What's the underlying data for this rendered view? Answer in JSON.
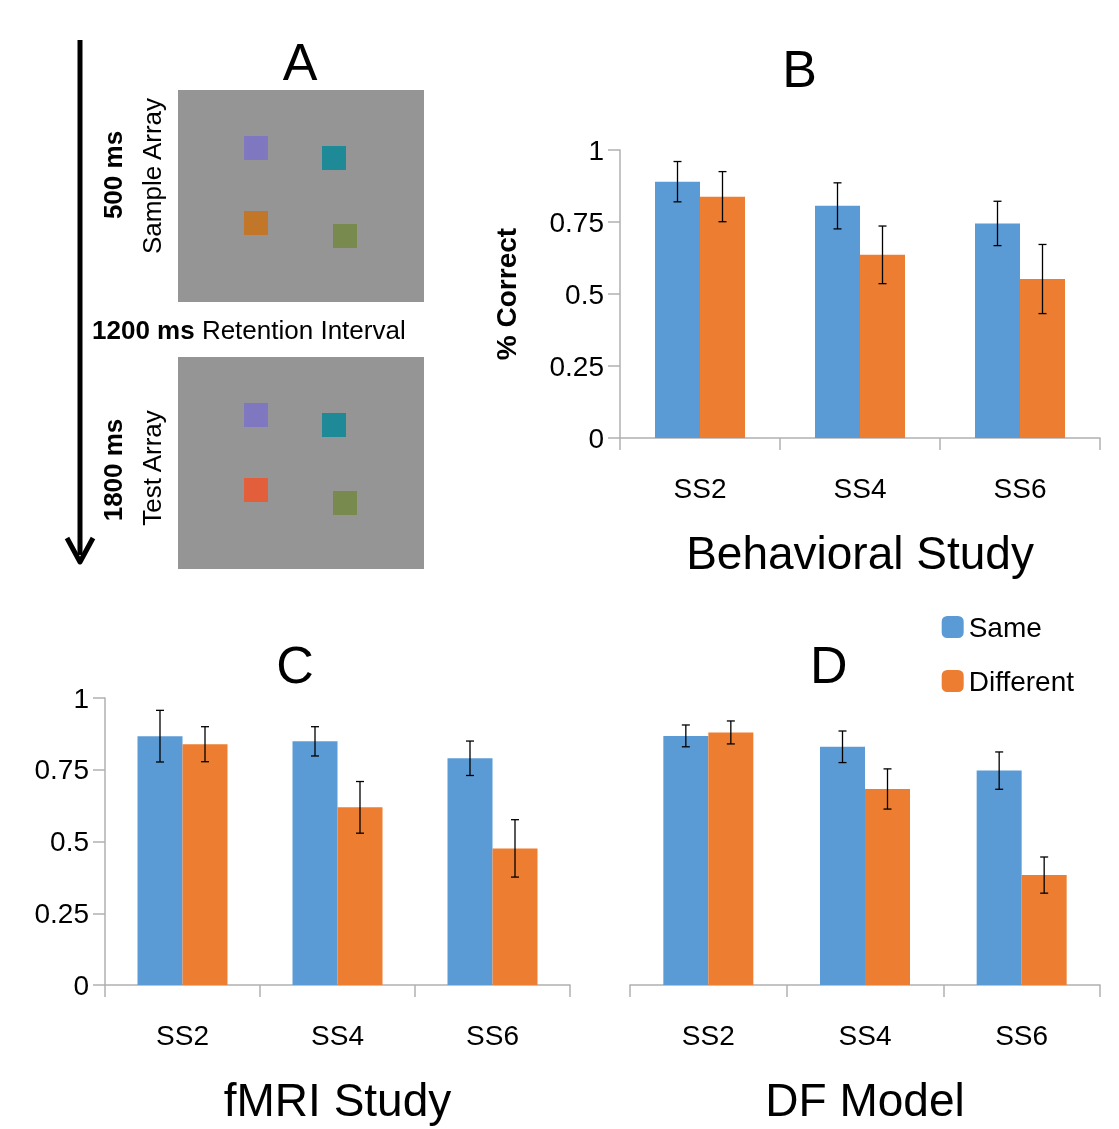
{
  "chart_data": [
    {
      "type": "other",
      "title": "A",
      "annotations": [
        "500 ms",
        "Sample Array",
        "1200 ms",
        "Retention Interval",
        "1800 ms",
        "Test Array"
      ]
    },
    {
      "type": "bar",
      "title": "B",
      "xlabel": "Behavioral Study",
      "ylabel": "% Correct",
      "categories": [
        "SS2",
        "SS4",
        "SS6"
      ],
      "ylim": [
        0,
        1
      ],
      "yticks": [
        0,
        0.25,
        0.5,
        0.75,
        1
      ],
      "series": [
        {
          "color": "#5b9bd5",
          "values": [
            0.89,
            0.806,
            0.745
          ],
          "errors": [
            0.07,
            0.08,
            0.077
          ]
        },
        {
          "color": "#ed7d31",
          "values": [
            0.838,
            0.636,
            0.552
          ],
          "errors": [
            0.087,
            0.1,
            0.12
          ]
        }
      ]
    },
    {
      "type": "bar",
      "title": "C",
      "xlabel": "fMRI Study",
      "categories": [
        "SS2",
        "SS4",
        "SS6"
      ],
      "ylim": [
        0,
        1
      ],
      "yticks": [
        0,
        0.25,
        0.5,
        0.75,
        1
      ],
      "series": [
        {
          "color": "#5b9bd5",
          "values": [
            0.867,
            0.849,
            0.79
          ],
          "errors": [
            0.09,
            0.051,
            0.06
          ]
        },
        {
          "color": "#ed7d31",
          "values": [
            0.839,
            0.619,
            0.476
          ],
          "errors": [
            0.061,
            0.09,
            0.1
          ]
        }
      ]
    },
    {
      "type": "bar",
      "title": "D",
      "xlabel": "DF Model",
      "categories": [
        "SS2",
        "SS4",
        "SS6"
      ],
      "ylim": [
        0,
        1
      ],
      "tick_labels": "x",
      "legend": "top right",
      "series": [
        {
          "name": "Same",
          "color": "#5b9bd5",
          "values": [
            0.868,
            0.83,
            0.747
          ],
          "errors": [
            0.038,
            0.055,
            0.065
          ]
        },
        {
          "name": "Different",
          "color": "#ed7d31",
          "values": [
            0.88,
            0.683,
            0.383
          ],
          "errors": [
            0.04,
            0.07,
            0.063
          ]
        }
      ]
    }
  ]
}
